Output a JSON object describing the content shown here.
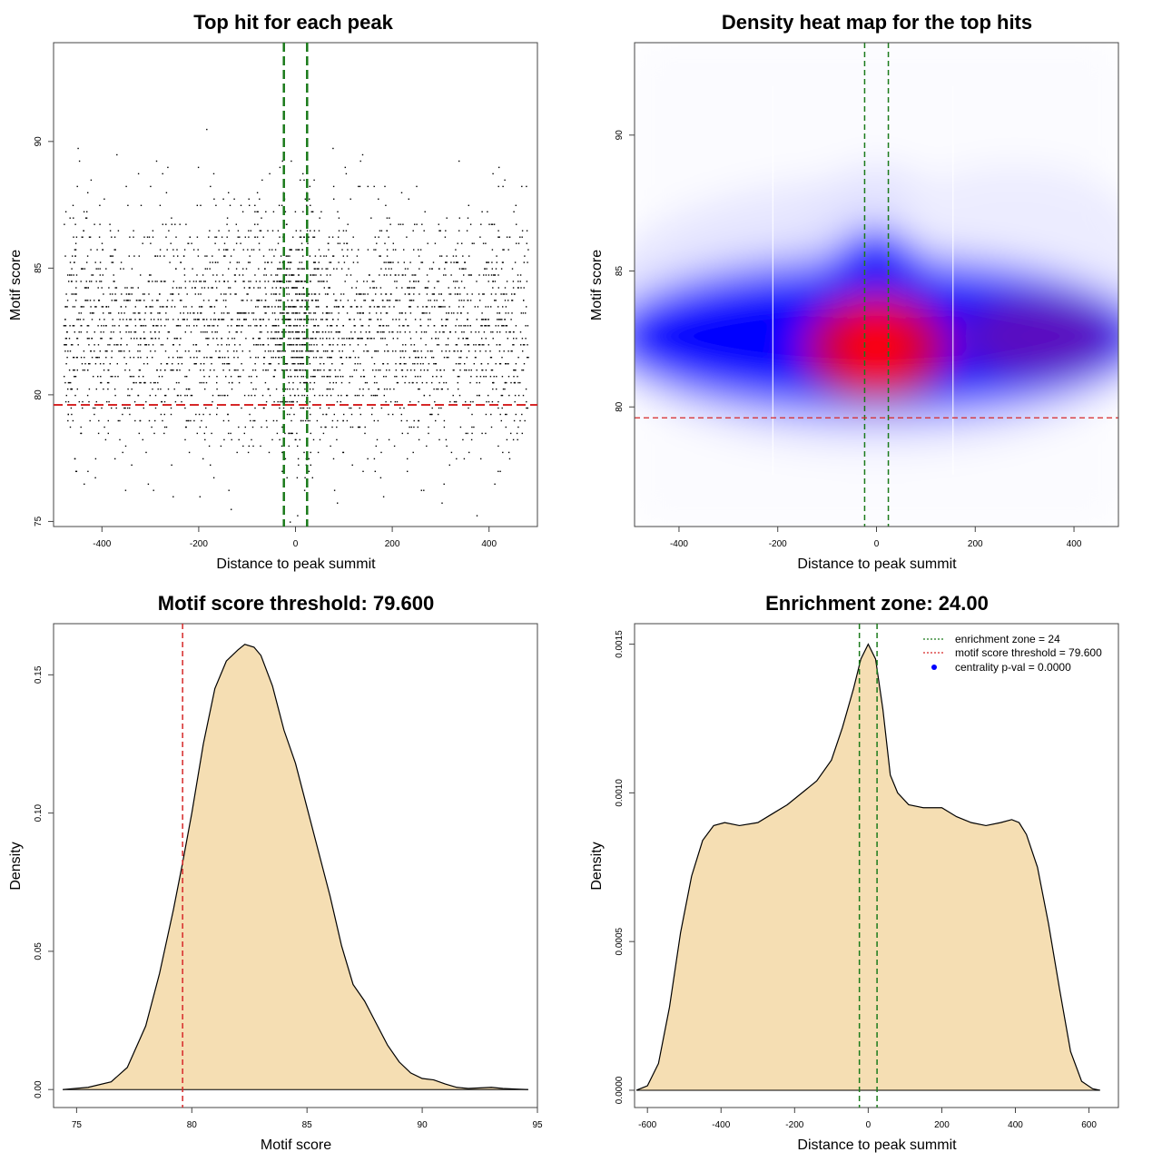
{
  "colors": {
    "threshold_red": "#d62728",
    "zone_green": "#1a7a1a",
    "fill_wheat": "#f5deb3",
    "density_blue": "#0000ff",
    "density_red": "#ff0000",
    "points": "#000000"
  },
  "chart_data": [
    {
      "type": "scatter",
      "title": "Top hit for each peak",
      "xlabel": "Distance to peak summit",
      "ylabel": "Motif score",
      "xlim": [
        -500,
        500
      ],
      "ylim": [
        74.8,
        93.9
      ],
      "xticks": [
        -400,
        -200,
        0,
        200,
        400
      ],
      "yticks": [
        75,
        80,
        85,
        90
      ],
      "xtick_labels": [
        "-400",
        "-200",
        "0",
        "200",
        "400"
      ],
      "ytick_labels": [
        "75",
        "80",
        "85",
        "90"
      ],
      "grid": false,
      "n_points": 3200,
      "x_range": [
        -480,
        480
      ],
      "score_mean": 82.6,
      "score_sd": 2.4,
      "threshold": 79.6,
      "zone": [
        -24,
        24
      ]
    },
    {
      "type": "heatmap",
      "title": "Density heat map for the top hits",
      "xlabel": "Distance to peak summit",
      "ylabel": "Motif score",
      "xlim": [
        -490,
        490
      ],
      "ylim": [
        75.6,
        93.4
      ],
      "xticks": [
        -400,
        -200,
        0,
        200,
        400
      ],
      "yticks": [
        80,
        85,
        90
      ],
      "xtick_labels": [
        "-400",
        "-200",
        "0",
        "200",
        "400"
      ],
      "ytick_labels": [
        "80",
        "85",
        "90"
      ],
      "peak": {
        "x": 0,
        "y": 82.2
      },
      "threshold": 79.6,
      "zone": [
        -24,
        24
      ]
    },
    {
      "type": "area",
      "title": "Motif score threshold: 79.600",
      "xlabel": "Motif score",
      "ylabel": "Density",
      "xlim": [
        74,
        95
      ],
      "ylim": [
        -0.0065,
        0.1685
      ],
      "xticks": [
        75,
        80,
        85,
        90,
        95
      ],
      "yticks": [
        0,
        0.05,
        0.1,
        0.15
      ],
      "xtick_labels": [
        "75",
        "80",
        "85",
        "90",
        "95"
      ],
      "ytick_labels": [
        "0.00",
        "0.05",
        "0.10",
        "0.15"
      ],
      "threshold": 79.6,
      "x": [
        74.4,
        75.5,
        76.5,
        77.2,
        78.0,
        78.6,
        79.2,
        79.6,
        80.0,
        80.5,
        81.0,
        81.5,
        82.0,
        82.3,
        82.7,
        83.0,
        83.5,
        84.0,
        84.5,
        85.0,
        85.5,
        86.0,
        86.5,
        87.0,
        87.5,
        88.0,
        88.5,
        89.0,
        89.5,
        90.0,
        90.5,
        91.0,
        91.5,
        92.0,
        92.5,
        93.0,
        93.5,
        94.0,
        94.6
      ],
      "y": [
        0.0,
        0.0008,
        0.0028,
        0.008,
        0.023,
        0.042,
        0.065,
        0.082,
        0.1,
        0.125,
        0.145,
        0.155,
        0.159,
        0.161,
        0.16,
        0.157,
        0.146,
        0.13,
        0.118,
        0.102,
        0.086,
        0.07,
        0.052,
        0.038,
        0.032,
        0.024,
        0.016,
        0.01,
        0.006,
        0.004,
        0.0035,
        0.002,
        0.0008,
        0.0004,
        0.0006,
        0.0008,
        0.0004,
        0.0002,
        0.0
      ]
    },
    {
      "type": "area",
      "title": "Enrichment zone: 24.00",
      "xlabel": "Distance to peak summit",
      "ylabel": "Density",
      "xlim": [
        -635,
        680
      ],
      "ylim": [
        -5.81e-05,
        0.0015689
      ],
      "xticks": [
        -600,
        -400,
        -200,
        0,
        200,
        400,
        600
      ],
      "yticks": [
        0,
        0.0005,
        0.001,
        0.0015
      ],
      "xtick_labels": [
        "-600",
        "-400",
        "-200",
        "0",
        "200",
        "400",
        "600"
      ],
      "ytick_labels": [
        "0.0000",
        "0.0005",
        "0.0010",
        "0.0015"
      ],
      "zone": [
        -24,
        24
      ],
      "legend_position": "top-right",
      "legend": [
        {
          "label": "enrichment zone = 24",
          "style": "dotted-green"
        },
        {
          "label": "motif score threshold = 79.600",
          "style": "dotted-red"
        },
        {
          "label": "centrality p-val = 0.0000",
          "style": "blue-point"
        }
      ],
      "x": [
        -630,
        -600,
        -570,
        -540,
        -510,
        -480,
        -450,
        -420,
        -390,
        -350,
        -300,
        -260,
        -220,
        -180,
        -140,
        -100,
        -70,
        -40,
        -20,
        0,
        20,
        40,
        60,
        80,
        110,
        150,
        200,
        240,
        280,
        320,
        360,
        390,
        410,
        430,
        460,
        490,
        520,
        550,
        580,
        610,
        630
      ],
      "y": [
        0.0,
        1.5e-05,
        9e-05,
        0.00028,
        0.00053,
        0.00072,
        0.00084,
        0.00089,
        0.0009,
        0.00089,
        0.0009,
        0.00093,
        0.00096,
        0.001,
        0.00104,
        0.00111,
        0.00122,
        0.00135,
        0.00145,
        0.0015,
        0.00145,
        0.00128,
        0.00106,
        0.001,
        0.00096,
        0.00095,
        0.00095,
        0.00092,
        0.0009,
        0.00089,
        0.0009,
        0.00091,
        0.0009,
        0.00086,
        0.00075,
        0.00056,
        0.00034,
        0.00013,
        3e-05,
        5e-06,
        0.0
      ]
    }
  ]
}
